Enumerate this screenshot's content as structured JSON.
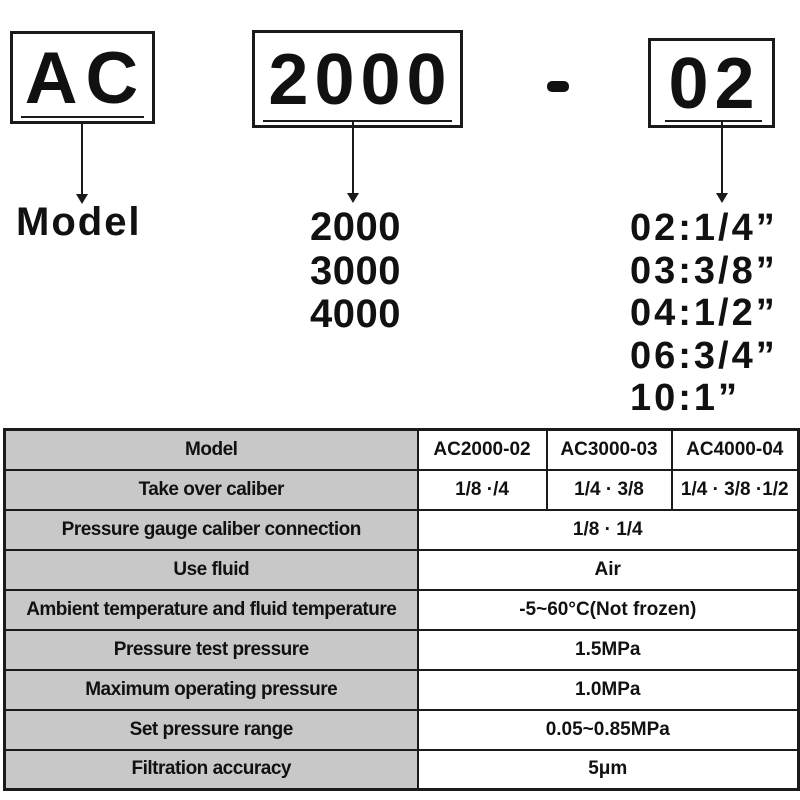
{
  "model_code": {
    "prefix": "AC",
    "size": "2000",
    "separator": "-",
    "port": "02",
    "legend_model": "Model",
    "size_options": [
      "2000",
      "3000",
      "4000"
    ],
    "port_options": [
      "02:1/4”",
      "03:3/8”",
      "04:1/2”",
      "06:3/4”",
      "10:1”"
    ]
  },
  "spec_table": {
    "rows": [
      {
        "label": "Model",
        "values": [
          "AC2000-02",
          "AC3000-03",
          "AC4000-04"
        ]
      },
      {
        "label": "Take over caliber",
        "values": [
          "1/8 ·/4",
          "1/4 · 3/8",
          "1/4 · 3/8 ·1/2"
        ]
      },
      {
        "label": "Pressure gauge caliber connection",
        "value": "1/8 · 1/4"
      },
      {
        "label": "Use fluid",
        "value": "Air"
      },
      {
        "label": "Ambient temperature and fluid temperature",
        "value": "-5~60°C(Not frozen)"
      },
      {
        "label": "Pressure test pressure",
        "value": "1.5MPa"
      },
      {
        "label": "Maximum operating pressure",
        "value": "1.0MPa"
      },
      {
        "label": "Set pressure range",
        "value": "0.05~0.85MPa"
      },
      {
        "label": "Filtration accuracy",
        "value": "5μm"
      }
    ]
  },
  "colors": {
    "label_bg": "#c8c8c8",
    "line": "#1a1a1a",
    "text": "#111111"
  }
}
